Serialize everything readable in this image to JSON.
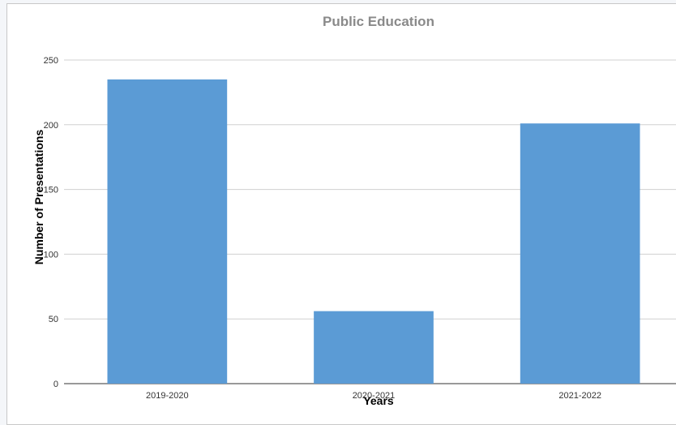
{
  "chart_data": {
    "type": "bar",
    "title": "Public Education",
    "xlabel": "Years",
    "ylabel": "Number of Presentations",
    "categories": [
      "2019-2020",
      "2020-2021",
      "2021-2022"
    ],
    "values": [
      235,
      56,
      201
    ],
    "ylim": [
      0,
      250
    ],
    "yticks": [
      0,
      50,
      100,
      150,
      200,
      250
    ],
    "grid": true,
    "legend": "none",
    "bar_color": "#5b9bd5"
  }
}
